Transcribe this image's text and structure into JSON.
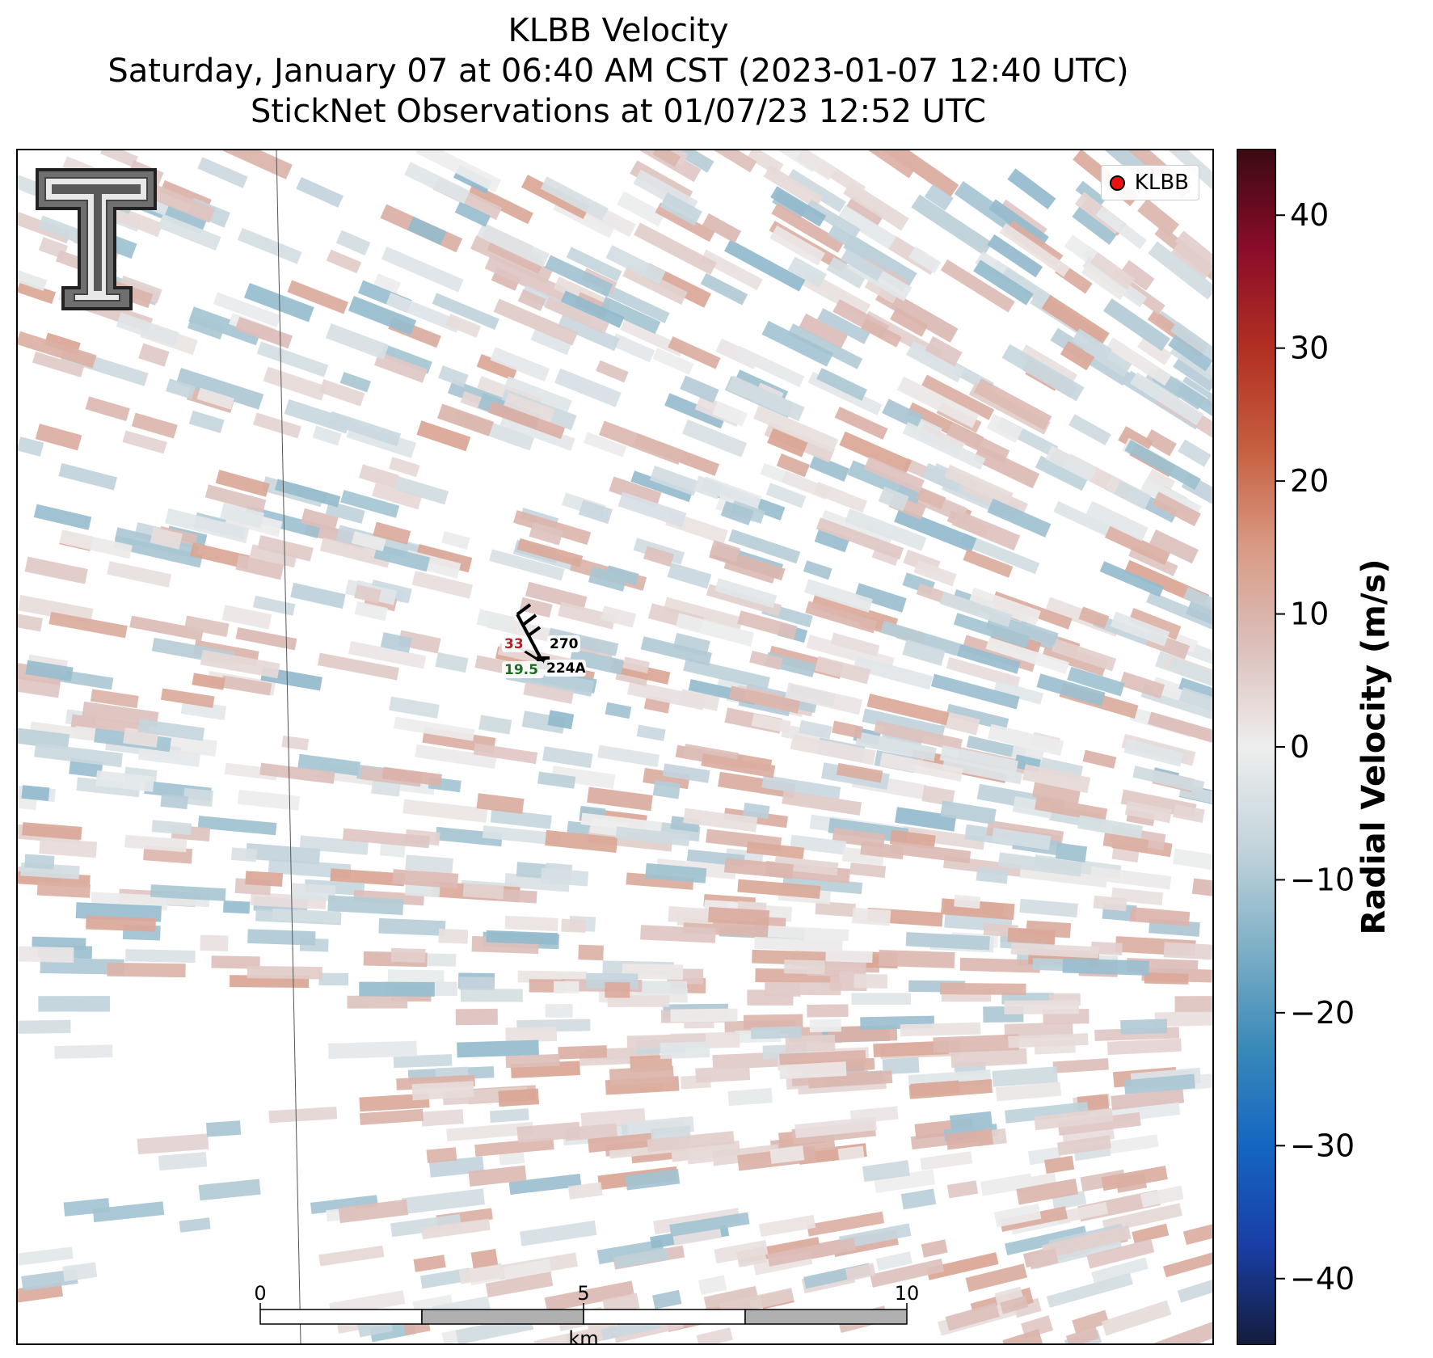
{
  "titles": {
    "line1": "KLBB Velocity",
    "line2": "Saturday, January 07 at 06:40 AM CST (2023-01-07 12:40 UTC)",
    "line3": "StickNet Observations at 01/07/23 12:52 UTC"
  },
  "legend": {
    "label": "KLBB",
    "marker_color": "#ee1111"
  },
  "station": {
    "id": "224A",
    "temperature": "33",
    "dewpoint": "19.5",
    "wind_direction": "270",
    "temp_color": "#b22222",
    "dew_color": "#1a6e1a"
  },
  "scalebar": {
    "ticks": [
      "0",
      "5",
      "10"
    ],
    "unit": "km"
  },
  "colorbar": {
    "label": "Radial Velocity (m/s)",
    "min": -45,
    "max": 45,
    "ticks": [
      40,
      30,
      20,
      10,
      0,
      -10,
      -20,
      -30,
      -40
    ],
    "tick_labels": [
      "40",
      "30",
      "20",
      "10",
      "0",
      "−10",
      "−20",
      "−30",
      "−40"
    ],
    "colors": [
      "#141c3c",
      "#1a3ea6",
      "#1466c2",
      "#3a8ab8",
      "#7fb0c6",
      "#c4d4dc",
      "#eeeeee",
      "#dcc0bc",
      "#d99a84",
      "#c65e3e",
      "#b22f22",
      "#8a0c2a",
      "#3a0a12"
    ]
  },
  "chart_data": {
    "type": "heatmap",
    "title": "KLBB Velocity",
    "subtitle": "Saturday, January 07 at 06:40 AM CST (2023-01-07 12:40 UTC) / StickNet Observations at 01/07/23 12:52 UTC",
    "xlabel": "",
    "ylabel": "",
    "colorbar_label": "Radial Velocity (m/s)",
    "value_range": [
      -45,
      45
    ],
    "description_values": "radial velocity field, mostly between -15 and +15 m/s"
  },
  "icons": {
    "logo": "texas-tech-double-t-logo",
    "wind_barb": "wind-barb-icon"
  }
}
